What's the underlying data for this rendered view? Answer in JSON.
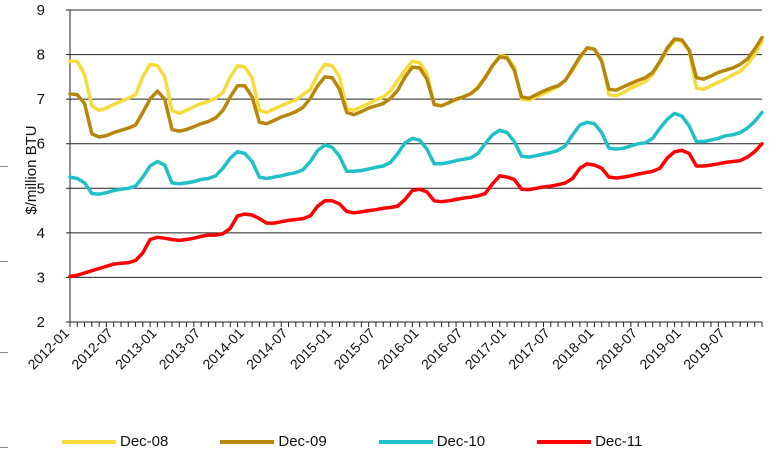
{
  "chart_data": {
    "type": "line",
    "title": "",
    "xlabel": "",
    "ylabel": "$/million BTU",
    "ylim": [
      2,
      9
    ],
    "yticks": [
      "2",
      "3",
      "4",
      "5",
      "6",
      "7",
      "8",
      "9"
    ],
    "xticks": [
      "2012-01",
      "2012-07",
      "2013-01",
      "2013-07",
      "2014-01",
      "2014-07",
      "2015-01",
      "2015-07",
      "2016-01",
      "2016-07",
      "2017-01",
      "2017-07",
      "2018-01",
      "2018-07",
      "2019-01",
      "2019-07"
    ],
    "grid": "horizontal",
    "legend_position": "bottom",
    "x_start": "2012-01",
    "x_end": "2019-12",
    "series": [
      {
        "name": "Dec-08",
        "color": "#F5DC3C",
        "values": [
          7.85,
          7.85,
          7.55,
          6.85,
          6.75,
          6.8,
          6.88,
          6.95,
          7.02,
          7.1,
          7.5,
          7.78,
          7.75,
          7.5,
          6.75,
          6.68,
          6.75,
          6.83,
          6.9,
          6.95,
          7.02,
          7.15,
          7.5,
          7.75,
          7.72,
          7.48,
          6.75,
          6.7,
          6.78,
          6.85,
          6.92,
          6.98,
          7.1,
          7.22,
          7.55,
          7.78,
          7.75,
          7.5,
          6.78,
          6.75,
          6.83,
          6.9,
          6.98,
          7.05,
          7.18,
          7.42,
          7.65,
          7.85,
          7.82,
          7.58,
          6.88,
          6.85,
          6.92,
          6.98,
          7.05,
          7.12,
          7.28,
          7.5,
          7.75,
          7.98,
          7.95,
          7.72,
          7.0,
          6.98,
          7.05,
          7.12,
          7.2,
          7.28,
          7.42,
          7.65,
          7.92,
          8.15,
          8.12,
          7.88,
          7.1,
          7.08,
          7.15,
          7.25,
          7.32,
          7.4,
          7.55,
          7.82,
          8.1,
          8.32,
          8.3,
          8.08,
          7.25,
          7.22,
          7.3,
          7.38,
          7.45,
          7.55,
          7.62,
          7.78,
          8.0,
          8.3
        ]
      },
      {
        "name": "Dec-09",
        "color": "#B8860B",
        "values": [
          7.12,
          7.1,
          6.9,
          6.22,
          6.15,
          6.18,
          6.25,
          6.3,
          6.35,
          6.42,
          6.7,
          7.0,
          7.18,
          7.0,
          6.32,
          6.28,
          6.32,
          6.38,
          6.45,
          6.5,
          6.58,
          6.75,
          7.05,
          7.3,
          7.3,
          7.05,
          6.48,
          6.45,
          6.52,
          6.6,
          6.65,
          6.72,
          6.82,
          7.02,
          7.3,
          7.5,
          7.48,
          7.22,
          6.7,
          6.65,
          6.72,
          6.8,
          6.85,
          6.9,
          7.02,
          7.2,
          7.5,
          7.72,
          7.7,
          7.45,
          6.88,
          6.85,
          6.92,
          7.0,
          7.05,
          7.12,
          7.25,
          7.48,
          7.75,
          7.95,
          7.92,
          7.65,
          7.05,
          7.02,
          7.1,
          7.18,
          7.25,
          7.3,
          7.42,
          7.68,
          7.95,
          8.15,
          8.12,
          7.85,
          7.22,
          7.2,
          7.28,
          7.35,
          7.42,
          7.48,
          7.6,
          7.85,
          8.15,
          8.35,
          8.33,
          8.1,
          7.48,
          7.45,
          7.52,
          7.6,
          7.65,
          7.7,
          7.78,
          7.9,
          8.12,
          8.38
        ]
      },
      {
        "name": "Dec-10",
        "color": "#20C0C8",
        "values": [
          5.25,
          5.22,
          5.12,
          4.88,
          4.87,
          4.9,
          4.95,
          4.98,
          5.0,
          5.05,
          5.25,
          5.5,
          5.6,
          5.52,
          5.12,
          5.1,
          5.12,
          5.15,
          5.2,
          5.22,
          5.28,
          5.45,
          5.68,
          5.82,
          5.78,
          5.6,
          5.25,
          5.22,
          5.25,
          5.28,
          5.32,
          5.35,
          5.42,
          5.6,
          5.85,
          5.97,
          5.92,
          5.72,
          5.38,
          5.38,
          5.4,
          5.43,
          5.47,
          5.5,
          5.58,
          5.78,
          6.02,
          6.12,
          6.08,
          5.88,
          5.55,
          5.55,
          5.58,
          5.62,
          5.65,
          5.68,
          5.78,
          6.0,
          6.2,
          6.3,
          6.25,
          6.05,
          5.72,
          5.7,
          5.73,
          5.77,
          5.8,
          5.85,
          5.95,
          6.2,
          6.42,
          6.48,
          6.45,
          6.25,
          5.9,
          5.88,
          5.9,
          5.95,
          6.0,
          6.02,
          6.12,
          6.35,
          6.55,
          6.68,
          6.62,
          6.4,
          6.05,
          6.05,
          6.08,
          6.12,
          6.18,
          6.2,
          6.25,
          6.35,
          6.5,
          6.7
        ]
      },
      {
        "name": "Dec-11",
        "color": "#FF0000",
        "values": [
          3.02,
          3.05,
          3.1,
          3.15,
          3.2,
          3.25,
          3.3,
          3.32,
          3.33,
          3.38,
          3.55,
          3.85,
          3.9,
          3.88,
          3.85,
          3.83,
          3.85,
          3.88,
          3.92,
          3.95,
          3.95,
          3.98,
          4.1,
          4.38,
          4.42,
          4.4,
          4.32,
          4.22,
          4.22,
          4.25,
          4.28,
          4.3,
          4.32,
          4.38,
          4.6,
          4.72,
          4.72,
          4.65,
          4.48,
          4.45,
          4.47,
          4.5,
          4.52,
          4.55,
          4.57,
          4.6,
          4.75,
          4.95,
          4.98,
          4.92,
          4.72,
          4.7,
          4.72,
          4.75,
          4.78,
          4.8,
          4.83,
          4.88,
          5.1,
          5.28,
          5.25,
          5.2,
          4.98,
          4.97,
          5.0,
          5.03,
          5.05,
          5.08,
          5.12,
          5.22,
          5.45,
          5.55,
          5.52,
          5.45,
          5.25,
          5.23,
          5.25,
          5.28,
          5.32,
          5.35,
          5.38,
          5.45,
          5.68,
          5.82,
          5.85,
          5.78,
          5.5,
          5.5,
          5.52,
          5.55,
          5.58,
          5.6,
          5.62,
          5.7,
          5.82,
          6.0
        ]
      }
    ]
  }
}
